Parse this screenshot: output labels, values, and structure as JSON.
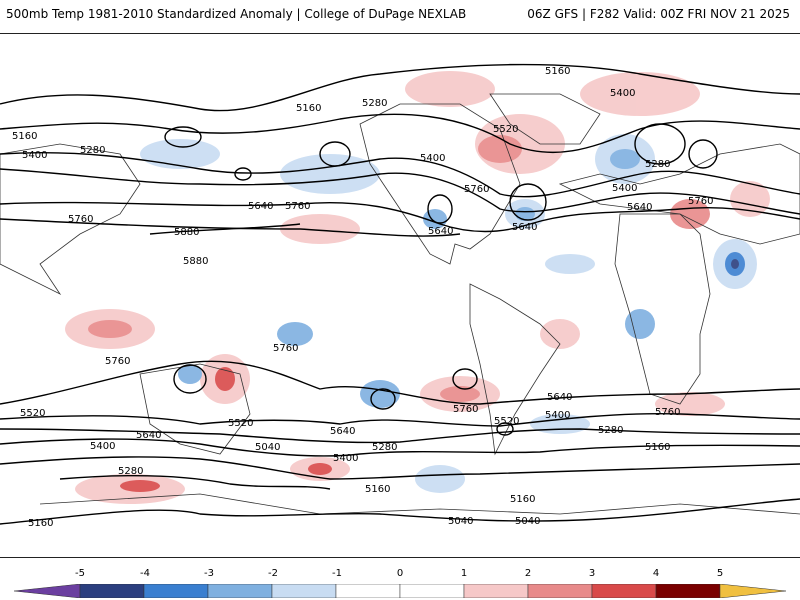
{
  "header": {
    "title": "500mb Temp 1981-2010 Standardized Anomaly | College of DuPage NEXLAB",
    "run_info": "06Z GFS | F282 Valid: 00Z FRI NOV 21 2025"
  },
  "map": {
    "contour_labels": [
      "5160",
      "5280",
      "5400",
      "5520",
      "5640",
      "5760",
      "5880",
      "5040",
      "5280",
      "5160",
      "5400",
      "5520",
      "5640",
      "5760",
      "5880",
      "5040"
    ],
    "colors": {
      "neg5": "#6b3fa0",
      "neg4": "#2b3f7f",
      "neg3": "#3a7fd0",
      "neg2": "#7fb0e0",
      "neg1": "#c8dcf2",
      "zero": "#ffffff",
      "pos1": "#f6c8c8",
      "pos2": "#e88a8a",
      "pos3": "#d94a4a",
      "pos4": "#b71c1c",
      "pos5": "#7a0000",
      "pos6": "#f0c040"
    }
  },
  "legend": {
    "ticks": [
      "-5",
      "-4",
      "-3",
      "-2",
      "-1",
      "0",
      "1",
      "2",
      "3",
      "4",
      "5"
    ]
  }
}
